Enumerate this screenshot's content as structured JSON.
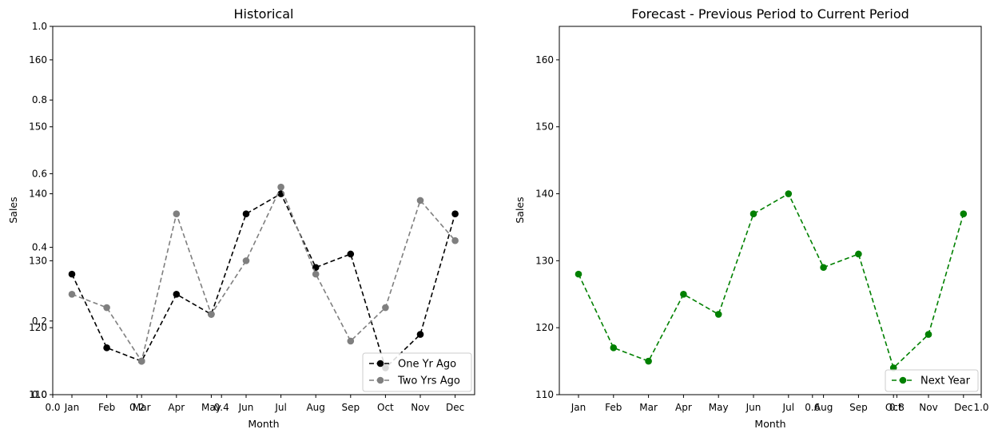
{
  "chart_data": [
    {
      "type": "line",
      "title": "Historical",
      "xlabel": "Month",
      "ylabel": "Sales",
      "categories": [
        "Jan",
        "Feb",
        "Mar",
        "Apr",
        "May",
        "Jun",
        "Jul",
        "Aug",
        "Sep",
        "Oct",
        "Nov",
        "Dec"
      ],
      "ylim": [
        110,
        165
      ],
      "yticks": [
        110,
        120,
        130,
        140,
        150,
        160
      ],
      "series": [
        {
          "name": "One Yr Ago",
          "color": "#000000",
          "values": [
            128,
            117,
            115,
            125,
            122,
            137,
            140,
            129,
            131,
            114,
            119,
            137
          ]
        },
        {
          "name": "Two Yrs Ago",
          "color": "#7f7f7f",
          "values": [
            125,
            123,
            115,
            137,
            122,
            130,
            141,
            128,
            118,
            123,
            139,
            133
          ]
        }
      ],
      "legend": "lower-right",
      "grid": false,
      "overlay_axis": {
        "xlim": [
          0,
          1
        ],
        "ylim": [
          0,
          1
        ],
        "xticks": [
          "0.0",
          "0.2",
          "0.4"
        ],
        "yticks": [
          "0.0",
          "0.2",
          "0.4",
          "0.6",
          "0.8",
          "1.0"
        ]
      }
    },
    {
      "type": "line",
      "title": "Forecast - Previous Period to Current Period",
      "xlabel": "Month",
      "ylabel": "Sales",
      "categories": [
        "Jan",
        "Feb",
        "Mar",
        "Apr",
        "May",
        "Jun",
        "Jul",
        "Aug",
        "Sep",
        "Oct",
        "Nov",
        "Dec"
      ],
      "ylim": [
        110,
        165
      ],
      "yticks": [
        110,
        120,
        130,
        140,
        150,
        160
      ],
      "series": [
        {
          "name": "Next Year",
          "color": "#008000",
          "values": [
            128,
            117,
            115,
            125,
            122,
            137,
            140,
            129,
            131,
            114,
            119,
            137
          ]
        }
      ],
      "legend": "lower-right",
      "grid": false,
      "overlay_axis": {
        "xlim": [
          0,
          1
        ],
        "xticks": [
          "0.6",
          "0.8",
          "1.0"
        ]
      }
    }
  ]
}
